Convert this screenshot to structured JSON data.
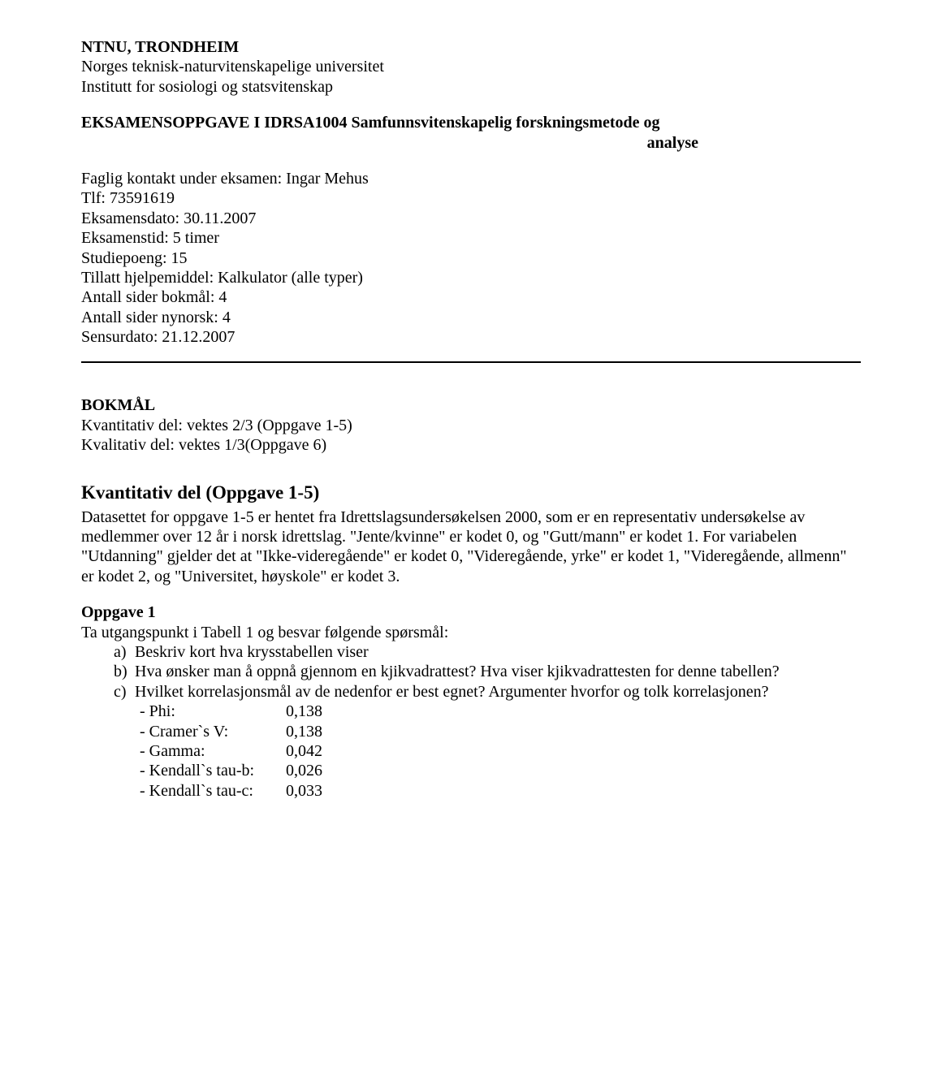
{
  "header": {
    "institution": "NTNU, TRONDHEIM",
    "university": "Norges teknisk-naturvitenskapelige universitet",
    "institute": "Institutt for sosiologi og statsvitenskap",
    "exam_title_line": "EKSAMENSOPPGAVE I IDRSA1004 Samfunnsvitenskapelig forskningsmetode og",
    "exam_title_line2": "analyse"
  },
  "info": {
    "contact_label": "Faglig kontakt under eksamen: Ingar Mehus",
    "phone": "Tlf: 73591619",
    "date": "Eksamensdato: 30.11.2007",
    "duration": "Eksamenstid: 5 timer",
    "credits": "Studiepoeng: 15",
    "aids": "Tillatt hjelpemiddel: Kalkulator (alle typer)",
    "pages_bokmal": "Antall sider bokmål: 4",
    "pages_nynorsk": "Antall sider nynorsk: 4",
    "censorship_date": "Sensurdato: 21.12.2007"
  },
  "body": {
    "bokmal_label": "BOKMÅL",
    "quant_weight": "Kvantitativ del: vektes 2/3 (Oppgave 1-5)",
    "qual_weight": "Kvalitativ del: vektes 1/3(Oppgave 6)",
    "quant_heading": "Kvantitativ del (Oppgave 1-5)",
    "dataset_desc": "Datasettet for oppgave 1-5 er hentet fra Idrettslagsundersøkelsen 2000, som er en representativ undersøkelse av medlemmer over 12 år i norsk idrettslag. \"Jente/kvinne\" er kodet 0, og \"Gutt/mann\" er kodet 1. For variabelen \"Utdanning\" gjelder det at \"Ikke-videregående\" er kodet 0, \"Videregående, yrke\" er kodet 1, \"Videregående, allmenn\" er kodet 2, og \"Universitet, høyskole\" er kodet 3."
  },
  "task1": {
    "heading": "Oppgave 1",
    "intro": "Ta utgangspunkt i Tabell 1 og besvar følgende spørsmål:",
    "a_marker": "a)",
    "a_text": "Beskriv kort hva krysstabellen viser",
    "b_marker": "b)",
    "b_text": "Hva ønsker man å oppnå gjennom en kjikvadrattest? Hva viser kjikvadrattesten for denne tabellen?",
    "c_marker": "c)",
    "c_text": "Hvilket korrelasjonsmål av de nedenfor er best egnet? Argumenter hvorfor og tolk korrelasjonen?",
    "measures": [
      {
        "label": "- Phi:",
        "value": "0,138"
      },
      {
        "label": "- Cramer`s V:",
        "value": "0,138"
      },
      {
        "label": "- Gamma:",
        "value": "0,042"
      },
      {
        "label": "- Kendall`s tau-b:",
        "value": "0,026"
      },
      {
        "label": "- Kendall`s tau-c:",
        "value": "0,033"
      }
    ]
  }
}
